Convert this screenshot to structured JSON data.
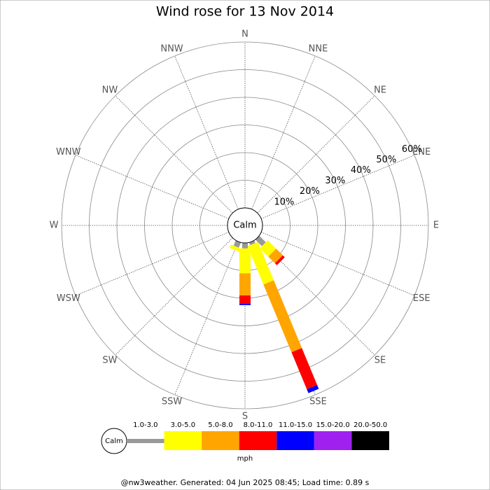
{
  "chart_data": {
    "type": "rose",
    "title": "Wind rose for 13 Nov 2014",
    "calm_label": "Calm",
    "legend_unit": "mph",
    "footer": "@nw3weather. Generated: 04 Jun 2025 08:45; Load time: 0.89 s",
    "categories": [
      "N",
      "NNE",
      "NE",
      "ENE",
      "E",
      "ESE",
      "SE",
      "SSE",
      "S",
      "SSW",
      "SW",
      "WSW",
      "W",
      "WNW",
      "NW",
      "NNW"
    ],
    "ylim": [
      0,
      60
    ],
    "yticks": [
      {
        "value": 10,
        "label": "10%"
      },
      {
        "value": 20,
        "label": "20%"
      },
      {
        "value": 30,
        "label": "30%"
      },
      {
        "value": 40,
        "label": "40%"
      },
      {
        "value": 50,
        "label": "50%"
      },
      {
        "value": 60,
        "label": "60%"
      }
    ],
    "series": [
      {
        "name": "1.0-3.0",
        "color": "#999999",
        "values": [
          0,
          0,
          0,
          0,
          0,
          0,
          3.3,
          1,
          2,
          2,
          0,
          0,
          0,
          0,
          0,
          0
        ]
      },
      {
        "name": "3.0-5.0",
        "color": "#ffff00",
        "values": [
          0,
          0,
          0,
          0,
          0,
          0,
          4.3,
          15,
          9,
          1.3,
          0,
          0,
          0,
          0,
          0,
          0
        ]
      },
      {
        "name": "5.0-8.0",
        "color": "#ffa500",
        "values": [
          0,
          0,
          0,
          0,
          0,
          0,
          3.4,
          26.5,
          8,
          0,
          0,
          0,
          0,
          0,
          0,
          0
        ]
      },
      {
        "name": "8.0-11.0",
        "color": "#ff0000",
        "values": [
          0,
          0,
          0,
          0,
          0,
          0,
          1,
          14.5,
          3,
          0,
          0,
          0,
          0,
          0,
          0,
          0
        ]
      },
      {
        "name": "11.0-15.0",
        "color": "#0000ff",
        "values": [
          0,
          0,
          0,
          0,
          0,
          0,
          0,
          1.5,
          0.5,
          0,
          0,
          0,
          0,
          0,
          0,
          0
        ]
      },
      {
        "name": "15.0-20.0",
        "color": "#a020f0",
        "values": [
          0,
          0,
          0,
          0,
          0,
          0,
          0,
          0,
          0,
          0,
          0,
          0,
          0,
          0,
          0,
          0
        ]
      },
      {
        "name": "20.0-50.0",
        "color": "#000000",
        "values": [
          0,
          0,
          0,
          0,
          0,
          0,
          0,
          0,
          0,
          0,
          0,
          0,
          0,
          0,
          0,
          0
        ]
      }
    ]
  }
}
